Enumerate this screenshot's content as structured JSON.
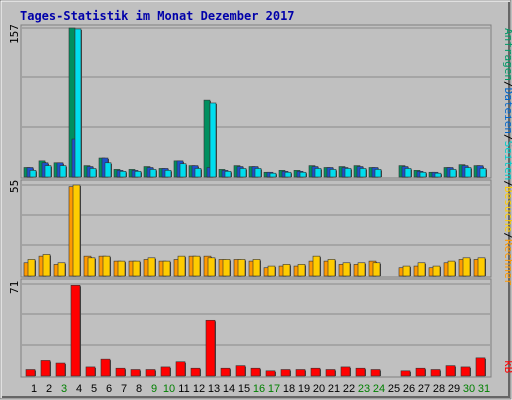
{
  "title": "Tages-Statistik im Monat Dezember 2017",
  "panels": {
    "top": {
      "ymax_label": "157",
      "legend": [
        {
          "text": "Anfragen",
          "color": "#009966"
        },
        {
          "text": "/",
          "color": "#000000"
        },
        {
          "text": "Dateien",
          "color": "#0066cc"
        },
        {
          "text": "/",
          "color": "#000000"
        },
        {
          "text": "Seiten",
          "color": "#00cccc"
        },
        {
          "text": "/",
          "color": "#000000"
        }
      ]
    },
    "mid": {
      "ymax_label": "55",
      "legend": [
        {
          "text": "Besuche",
          "color": "#ffcc00"
        },
        {
          "text": "/",
          "color": "#000000"
        },
        {
          "text": "Rechner",
          "color": "#ff9900"
        }
      ]
    },
    "bot": {
      "ymax_label": "71",
      "legend": [
        {
          "text": "kB",
          "color": "#ff0000"
        }
      ]
    }
  },
  "x_labels": [
    "1",
    "2",
    "3",
    "4",
    "5",
    "6",
    "7",
    "8",
    "9",
    "10",
    "11",
    "12",
    "13",
    "14",
    "15",
    "16",
    "17",
    "18",
    "19",
    "20",
    "21",
    "22",
    "23",
    "24",
    "25",
    "26",
    "27",
    "28",
    "29",
    "30",
    "31"
  ],
  "x_label_colors": [
    "#000000",
    "#000000",
    "#008000",
    "#000000",
    "#000000",
    "#000000",
    "#000000",
    "#000000",
    "#008000",
    "#008000",
    "#000000",
    "#000000",
    "#000000",
    "#000000",
    "#000000",
    "#008000",
    "#008000",
    "#000000",
    "#000000",
    "#000000",
    "#000000",
    "#000000",
    "#008000",
    "#008000",
    "#000000",
    "#000000",
    "#000000",
    "#000000",
    "#000000",
    "#008000",
    "#008000"
  ],
  "chart_data": {
    "type": "bar",
    "title": "Tages-Statistik im Monat Dezember 2017",
    "categories": [
      "1",
      "2",
      "3",
      "4",
      "5",
      "6",
      "7",
      "8",
      "9",
      "10",
      "11",
      "12",
      "13",
      "14",
      "15",
      "16",
      "17",
      "18",
      "19",
      "20",
      "21",
      "22",
      "23",
      "24",
      "25",
      "26",
      "27",
      "28",
      "29",
      "30",
      "31"
    ],
    "panels": [
      {
        "name": "top",
        "ylim": [
          0,
          157
        ],
        "series": [
          {
            "name": "Anfragen",
            "color": "#008f5f",
            "values": [
              10,
              17,
              15,
              157,
              12,
              20,
              8,
              8,
              11,
              9,
              17,
              12,
              81,
              8,
              12,
              11,
              5,
              7,
              7,
              12,
              10,
              11,
              12,
              10,
              0,
              12,
              7,
              5,
              10,
              13,
              12
            ]
          },
          {
            "name": "Dateien",
            "color": "#1e50cc",
            "values": [
              10,
              15,
              15,
              40,
              11,
              20,
              7,
              7,
              10,
              9,
              17,
              12,
              10,
              7,
              11,
              11,
              5,
              6,
              6,
              11,
              10,
              10,
              11,
              10,
              0,
              11,
              6,
              5,
              10,
              12,
              12
            ]
          },
          {
            "name": "Seiten",
            "color": "#00ddee",
            "values": [
              7,
              12,
              12,
              156,
              9,
              15,
              6,
              6,
              8,
              7,
              14,
              9,
              78,
              6,
              9,
              9,
              4,
              5,
              5,
              9,
              8,
              9,
              9,
              8,
              0,
              9,
              5,
              4,
              8,
              10,
              9
            ]
          }
        ]
      },
      {
        "name": "mid",
        "ylim": [
          0,
          55
        ],
        "series": [
          {
            "name": "Rechner",
            "color": "#ff9900",
            "values": [
              8,
              12,
              7,
              54,
              12,
              12,
              9,
              9,
              10,
              9,
              10,
              12,
              12,
              10,
              10,
              9,
              5,
              6,
              6,
              9,
              9,
              7,
              7,
              9,
              0,
              5,
              6,
              5,
              8,
              10,
              10
            ]
          },
          {
            "name": "Besuche",
            "color": "#ffcc00",
            "values": [
              10,
              13,
              8,
              55,
              11,
              12,
              9,
              9,
              11,
              9,
              12,
              12,
              11,
              10,
              10,
              10,
              6,
              7,
              7,
              12,
              10,
              8,
              8,
              8,
              0,
              6,
              8,
              6,
              9,
              11,
              11
            ]
          }
        ]
      },
      {
        "name": "bot",
        "ylim": [
          0,
          71
        ],
        "series": [
          {
            "name": "kB",
            "color": "#ff0000",
            "values": [
              5,
              12,
              10,
              70,
              7,
              13,
              6,
              5,
              5,
              7,
              11,
              6,
              43,
              6,
              8,
              6,
              4,
              5,
              5,
              6,
              5,
              7,
              6,
              5,
              0,
              4,
              6,
              5,
              8,
              7,
              14
            ]
          }
        ]
      }
    ],
    "grid": true
  }
}
